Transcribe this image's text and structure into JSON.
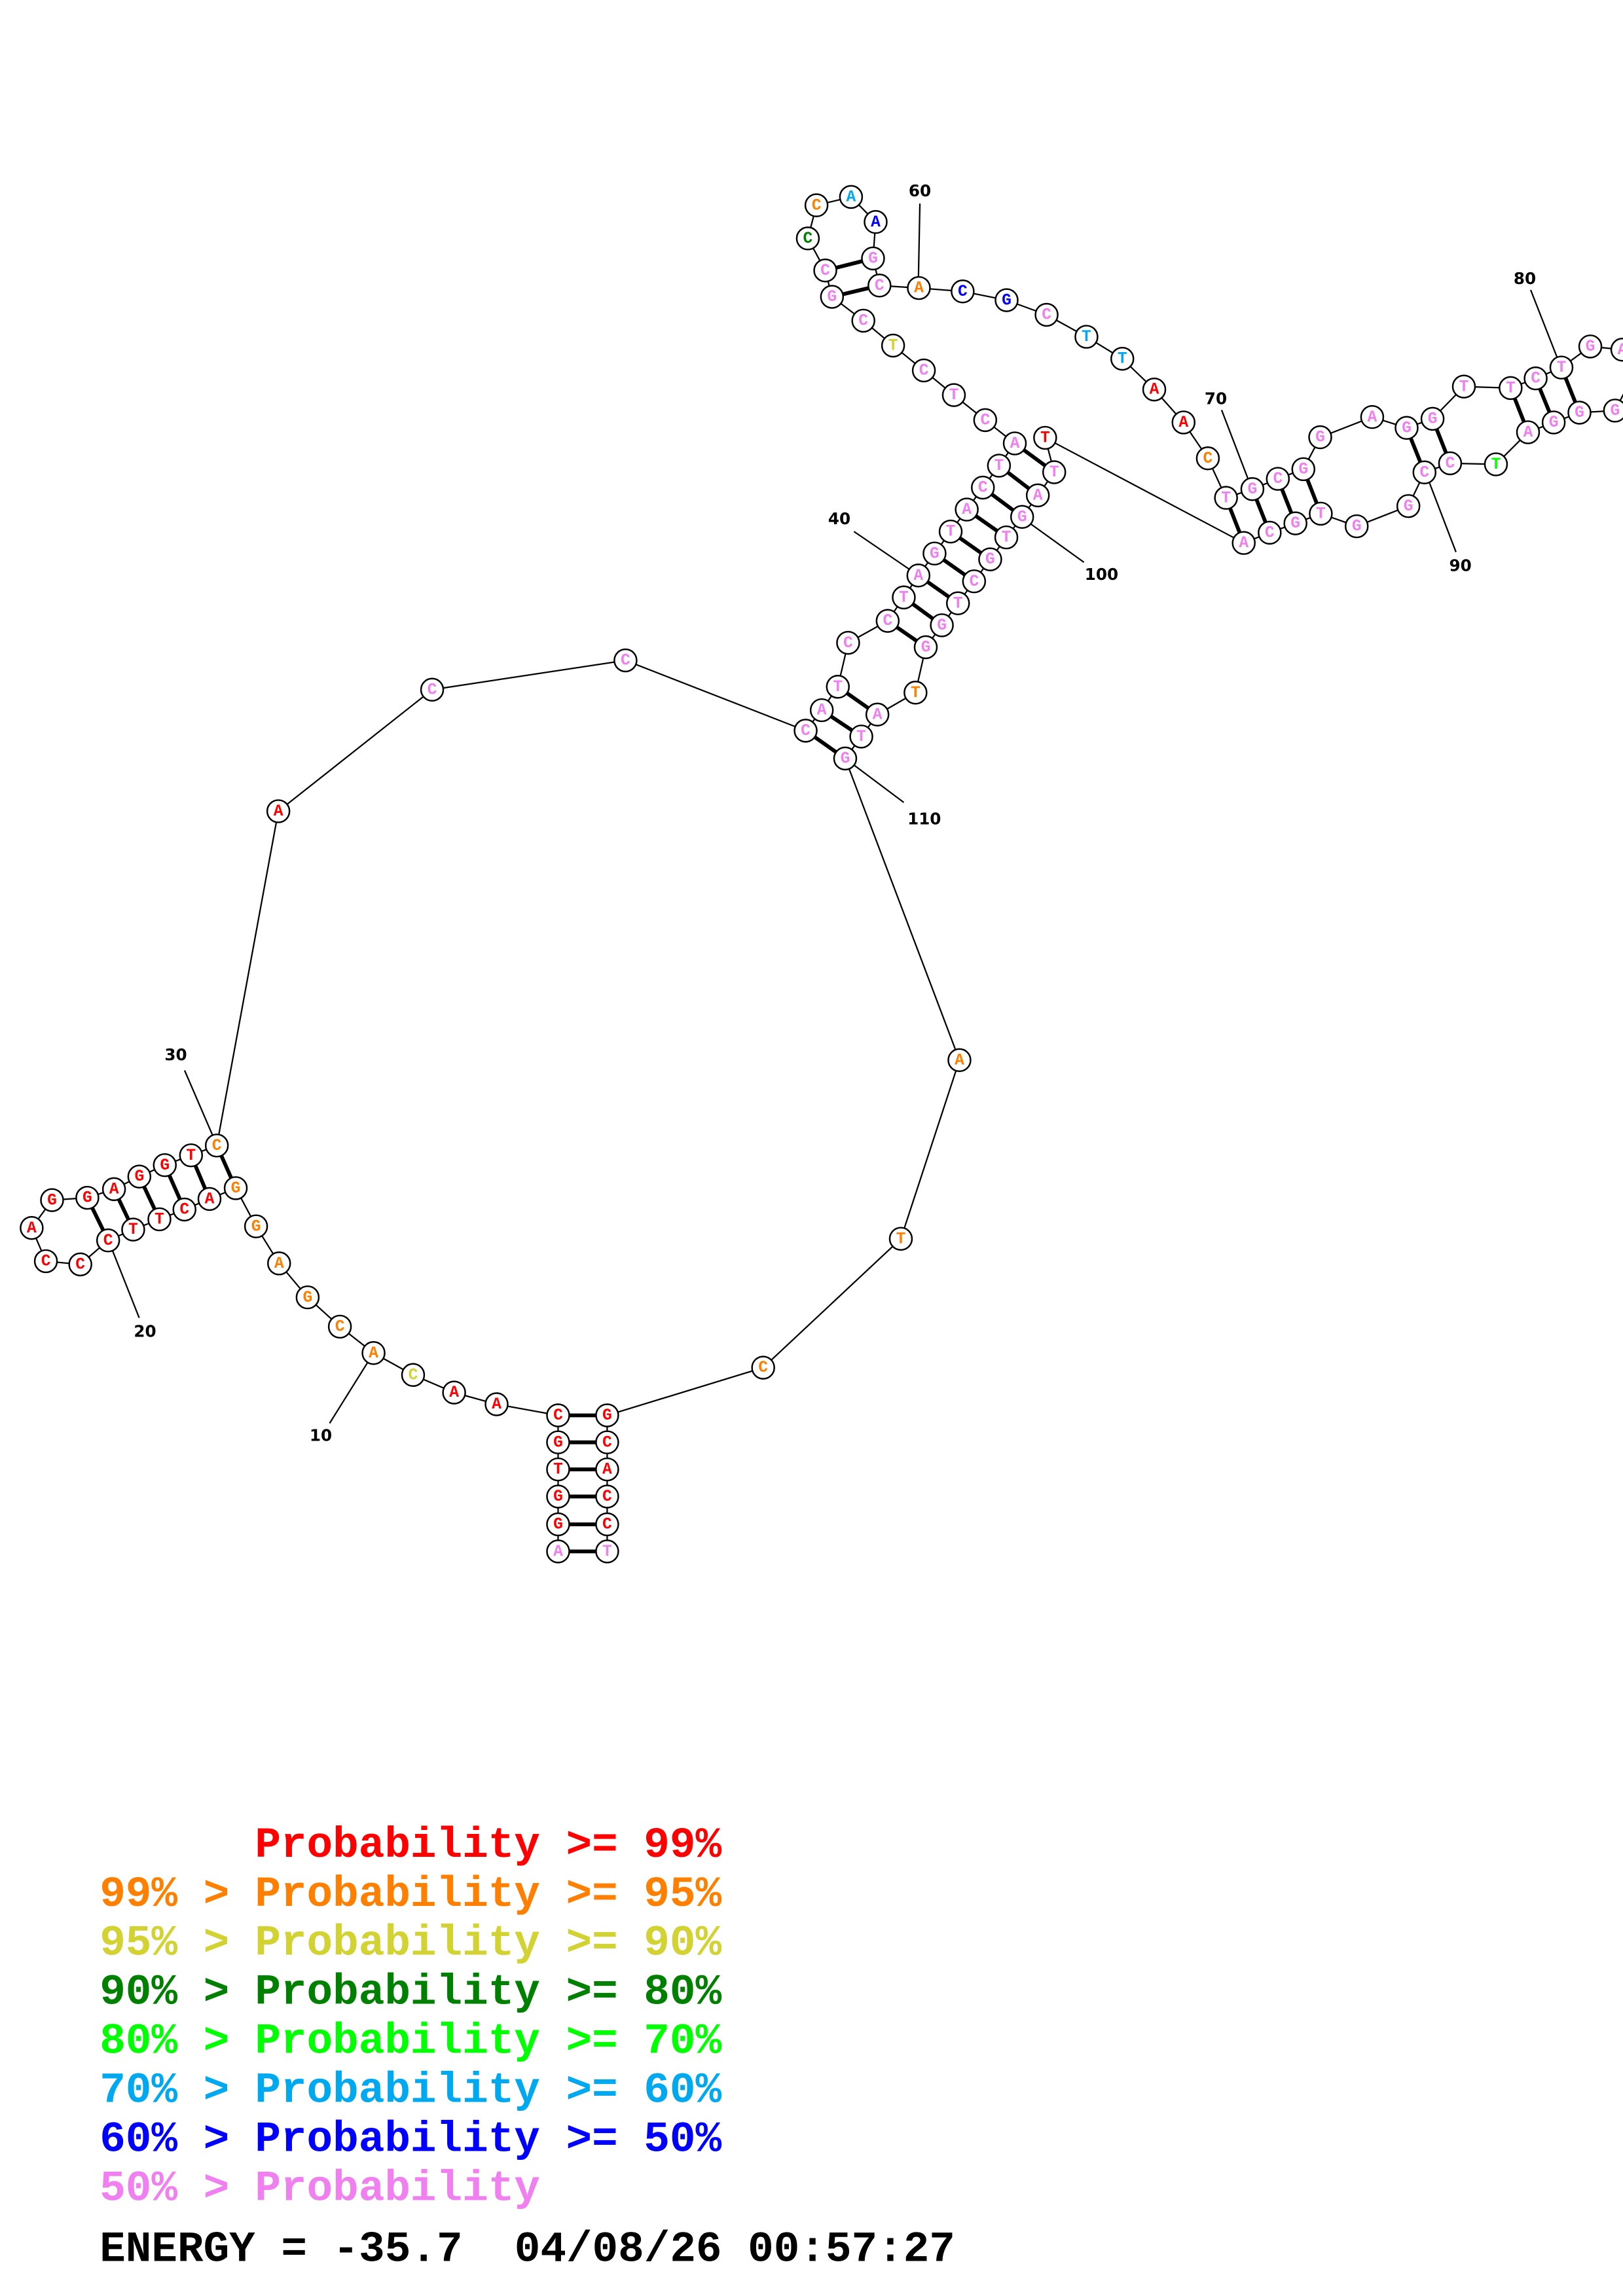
{
  "prob_colors": {
    "p99": "#ff0000",
    "p95": "#ff8000",
    "p90": "#d2d232",
    "p80": "#008000",
    "p70": "#00ff00",
    "p60": "#00a8f0",
    "p50": "#0000ff",
    "plow": "#f080f0"
  },
  "sequence": [
    {
      "n": 1,
      "b": "A",
      "p": "plow"
    },
    {
      "n": 2,
      "b": "G",
      "p": "p99"
    },
    {
      "n": 3,
      "b": "G",
      "p": "p99"
    },
    {
      "n": 4,
      "b": "T",
      "p": "p99"
    },
    {
      "n": 5,
      "b": "G",
      "p": "p99"
    },
    {
      "n": 6,
      "b": "C",
      "p": "p99"
    },
    {
      "n": 7,
      "b": "A",
      "p": "p99"
    },
    {
      "n": 8,
      "b": "A",
      "p": "p99"
    },
    {
      "n": 9,
      "b": "C",
      "p": "p90"
    },
    {
      "n": 10,
      "b": "A",
      "p": "p95"
    },
    {
      "n": 11,
      "b": "C",
      "p": "p95"
    },
    {
      "n": 12,
      "b": "G",
      "p": "p95"
    },
    {
      "n": 13,
      "b": "A",
      "p": "p95"
    },
    {
      "n": 14,
      "b": "G",
      "p": "p95"
    },
    {
      "n": 15,
      "b": "G",
      "p": "p95"
    },
    {
      "n": 16,
      "b": "A",
      "p": "p99"
    },
    {
      "n": 17,
      "b": "C",
      "p": "p99"
    },
    {
      "n": 18,
      "b": "T",
      "p": "p99"
    },
    {
      "n": 19,
      "b": "T",
      "p": "p99"
    },
    {
      "n": 20,
      "b": "C",
      "p": "p99"
    },
    {
      "n": 21,
      "b": "C",
      "p": "p99"
    },
    {
      "n": 22,
      "b": "C",
      "p": "p99"
    },
    {
      "n": 23,
      "b": "A",
      "p": "p99"
    },
    {
      "n": 24,
      "b": "G",
      "p": "p99"
    },
    {
      "n": 25,
      "b": "G",
      "p": "p99"
    },
    {
      "n": 26,
      "b": "A",
      "p": "p99"
    },
    {
      "n": 27,
      "b": "G",
      "p": "p99"
    },
    {
      "n": 28,
      "b": "G",
      "p": "p99"
    },
    {
      "n": 29,
      "b": "T",
      "p": "p99"
    },
    {
      "n": 30,
      "b": "C",
      "p": "p95"
    },
    {
      "n": 31,
      "b": "A",
      "p": "p99"
    },
    {
      "n": 32,
      "b": "C",
      "p": "plow"
    },
    {
      "n": 33,
      "b": "C",
      "p": "plow"
    },
    {
      "n": 34,
      "b": "C",
      "p": "plow"
    },
    {
      "n": 35,
      "b": "A",
      "p": "plow"
    },
    {
      "n": 36,
      "b": "T",
      "p": "plow"
    },
    {
      "n": 37,
      "b": "C",
      "p": "plow"
    },
    {
      "n": 38,
      "b": "C",
      "p": "plow"
    },
    {
      "n": 39,
      "b": "T",
      "p": "plow"
    },
    {
      "n": 40,
      "b": "A",
      "p": "plow"
    },
    {
      "n": 41,
      "b": "G",
      "p": "plow"
    },
    {
      "n": 42,
      "b": "T",
      "p": "plow"
    },
    {
      "n": 43,
      "b": "A",
      "p": "plow"
    },
    {
      "n": 44,
      "b": "C",
      "p": "plow"
    },
    {
      "n": 45,
      "b": "T",
      "p": "plow"
    },
    {
      "n": 46,
      "b": "A",
      "p": "plow"
    },
    {
      "n": 47,
      "b": "C",
      "p": "plow"
    },
    {
      "n": 48,
      "b": "T",
      "p": "plow"
    },
    {
      "n": 49,
      "b": "C",
      "p": "plow"
    },
    {
      "n": 50,
      "b": "T",
      "p": "p90"
    },
    {
      "n": 51,
      "b": "C",
      "p": "plow"
    },
    {
      "n": 52,
      "b": "G",
      "p": "plow"
    },
    {
      "n": 53,
      "b": "C",
      "p": "plow"
    },
    {
      "n": 54,
      "b": "C",
      "p": "p80"
    },
    {
      "n": 55,
      "b": "C",
      "p": "p95"
    },
    {
      "n": 56,
      "b": "A",
      "p": "p60"
    },
    {
      "n": 57,
      "b": "A",
      "p": "p50"
    },
    {
      "n": 58,
      "b": "G",
      "p": "plow"
    },
    {
      "n": 59,
      "b": "C",
      "p": "plow"
    },
    {
      "n": 60,
      "b": "A",
      "p": "p95"
    },
    {
      "n": 61,
      "b": "C",
      "p": "p50"
    },
    {
      "n": 62,
      "b": "G",
      "p": "p50"
    },
    {
      "n": 63,
      "b": "C",
      "p": "plow"
    },
    {
      "n": 64,
      "b": "T",
      "p": "p60"
    },
    {
      "n": 65,
      "b": "T",
      "p": "p60"
    },
    {
      "n": 66,
      "b": "A",
      "p": "p99"
    },
    {
      "n": 67,
      "b": "A",
      "p": "p99"
    },
    {
      "n": 68,
      "b": "C",
      "p": "p95"
    },
    {
      "n": 69,
      "b": "T",
      "p": "plow"
    },
    {
      "n": 70,
      "b": "G",
      "p": "plow"
    },
    {
      "n": 71,
      "b": "C",
      "p": "plow"
    },
    {
      "n": 72,
      "b": "G",
      "p": "plow"
    },
    {
      "n": 73,
      "b": "G",
      "p": "plow"
    },
    {
      "n": 74,
      "b": "A",
      "p": "plow"
    },
    {
      "n": 75,
      "b": "G",
      "p": "plow"
    },
    {
      "n": 76,
      "b": "G",
      "p": "plow"
    },
    {
      "n": 77,
      "b": "T",
      "p": "plow"
    },
    {
      "n": 78,
      "b": "T",
      "p": "plow"
    },
    {
      "n": 79,
      "b": "C",
      "p": "plow"
    },
    {
      "n": 80,
      "b": "T",
      "p": "plow"
    },
    {
      "n": 81,
      "b": "G",
      "p": "plow"
    },
    {
      "n": 82,
      "b": "A",
      "p": "plow"
    },
    {
      "n": 84,
      "b": "G",
      "p": "plow"
    },
    {
      "n": 85,
      "b": "G",
      "p": "plow"
    },
    {
      "n": 86,
      "b": "G",
      "p": "plow"
    },
    {
      "n": 87,
      "b": "A",
      "p": "plow"
    },
    {
      "n": 88,
      "b": "T",
      "p": "p70"
    },
    {
      "n": 89,
      "b": "C",
      "p": "plow"
    },
    {
      "n": 90,
      "b": "C",
      "p": "plow"
    },
    {
      "n": 91,
      "b": "G",
      "p": "plow"
    },
    {
      "n": 92,
      "b": "G",
      "p": "plow"
    },
    {
      "n": 93,
      "b": "T",
      "p": "plow"
    },
    {
      "n": 94,
      "b": "G",
      "p": "plow"
    },
    {
      "n": 95,
      "b": "C",
      "p": "plow"
    },
    {
      "n": 96,
      "b": "A",
      "p": "plow"
    },
    {
      "n": 97,
      "b": "T",
      "p": "p99"
    },
    {
      "n": 98,
      "b": "T",
      "p": "plow"
    },
    {
      "n": 99,
      "b": "A",
      "p": "plow"
    },
    {
      "n": 100,
      "b": "G",
      "p": "plow"
    },
    {
      "n": 101,
      "b": "T",
      "p": "plow"
    },
    {
      "n": 102,
      "b": "G",
      "p": "plow"
    },
    {
      "n": 103,
      "b": "C",
      "p": "plow"
    },
    {
      "n": 104,
      "b": "T",
      "p": "plow"
    },
    {
      "n": 105,
      "b": "G",
      "p": "plow"
    },
    {
      "n": 106,
      "b": "G",
      "p": "plow"
    },
    {
      "n": 107,
      "b": "T",
      "p": "p95"
    },
    {
      "n": 108,
      "b": "A",
      "p": "plow"
    },
    {
      "n": 109,
      "b": "T",
      "p": "plow"
    },
    {
      "n": 110,
      "b": "G",
      "p": "plow"
    },
    {
      "n": 111,
      "b": "A",
      "p": "p95"
    },
    {
      "n": 112,
      "b": "T",
      "p": "p95"
    },
    {
      "n": 113,
      "b": "C",
      "p": "p95"
    },
    {
      "n": 114,
      "b": "G",
      "p": "p99"
    },
    {
      "n": 115,
      "b": "C",
      "p": "p99"
    },
    {
      "n": 116,
      "b": "A",
      "p": "p99"
    },
    {
      "n": 117,
      "b": "C",
      "p": "p99"
    },
    {
      "n": 118,
      "b": "C",
      "p": "p99"
    },
    {
      "n": 119,
      "b": "T",
      "p": "plow"
    }
  ],
  "pairs": [
    [
      1,
      119
    ],
    [
      2,
      118
    ],
    [
      3,
      117
    ],
    [
      4,
      116
    ],
    [
      5,
      115
    ],
    [
      6,
      114
    ],
    [
      15,
      30
    ],
    [
      16,
      29
    ],
    [
      17,
      28
    ],
    [
      18,
      27
    ],
    [
      19,
      26
    ],
    [
      20,
      25
    ],
    [
      34,
      110
    ],
    [
      35,
      109
    ],
    [
      36,
      108
    ],
    [
      38,
      106
    ],
    [
      39,
      105
    ],
    [
      40,
      104
    ],
    [
      41,
      103
    ],
    [
      42,
      102
    ],
    [
      43,
      101
    ],
    [
      44,
      100
    ],
    [
      45,
      99
    ],
    [
      46,
      98
    ],
    [
      52,
      59
    ],
    [
      53,
      58
    ],
    [
      69,
      96
    ],
    [
      70,
      95
    ],
    [
      71,
      94
    ],
    [
      72,
      93
    ],
    [
      75,
      90
    ],
    [
      76,
      89
    ],
    [
      78,
      87
    ],
    [
      79,
      86
    ],
    [
      80,
      85
    ]
  ],
  "number_labels": [
    {
      "n": 10,
      "text": "10"
    },
    {
      "n": 20,
      "text": "20"
    },
    {
      "n": 30,
      "text": "30"
    },
    {
      "n": 40,
      "text": "40"
    },
    {
      "n": 60,
      "text": "60"
    },
    {
      "n": 70,
      "text": "70"
    },
    {
      "n": 80,
      "text": "80"
    },
    {
      "n": 90,
      "text": "90"
    },
    {
      "n": 100,
      "text": "100"
    },
    {
      "n": 110,
      "text": "110"
    }
  ],
  "legend": [
    {
      "prefix": "",
      "main": "Probability >= 99%",
      "p": "p99"
    },
    {
      "prefix": "99% >",
      "main": "Probability >= 95%",
      "p": "p95"
    },
    {
      "prefix": "95% >",
      "main": "Probability >= 90%",
      "p": "p90"
    },
    {
      "prefix": "90% >",
      "main": "Probability >= 80%",
      "p": "p80"
    },
    {
      "prefix": "80% >",
      "main": "Probability >= 70%",
      "p": "p70"
    },
    {
      "prefix": "70% >",
      "main": "Probability >= 60%",
      "p": "p60"
    },
    {
      "prefix": "60% >",
      "main": "Probability >= 50%",
      "p": "p50"
    },
    {
      "prefix": "50% >",
      "main": "Probability",
      "p": "plow"
    }
  ],
  "footer": {
    "energy_line": "ENERGY = -35.7  04/08/26 00:57:27"
  }
}
